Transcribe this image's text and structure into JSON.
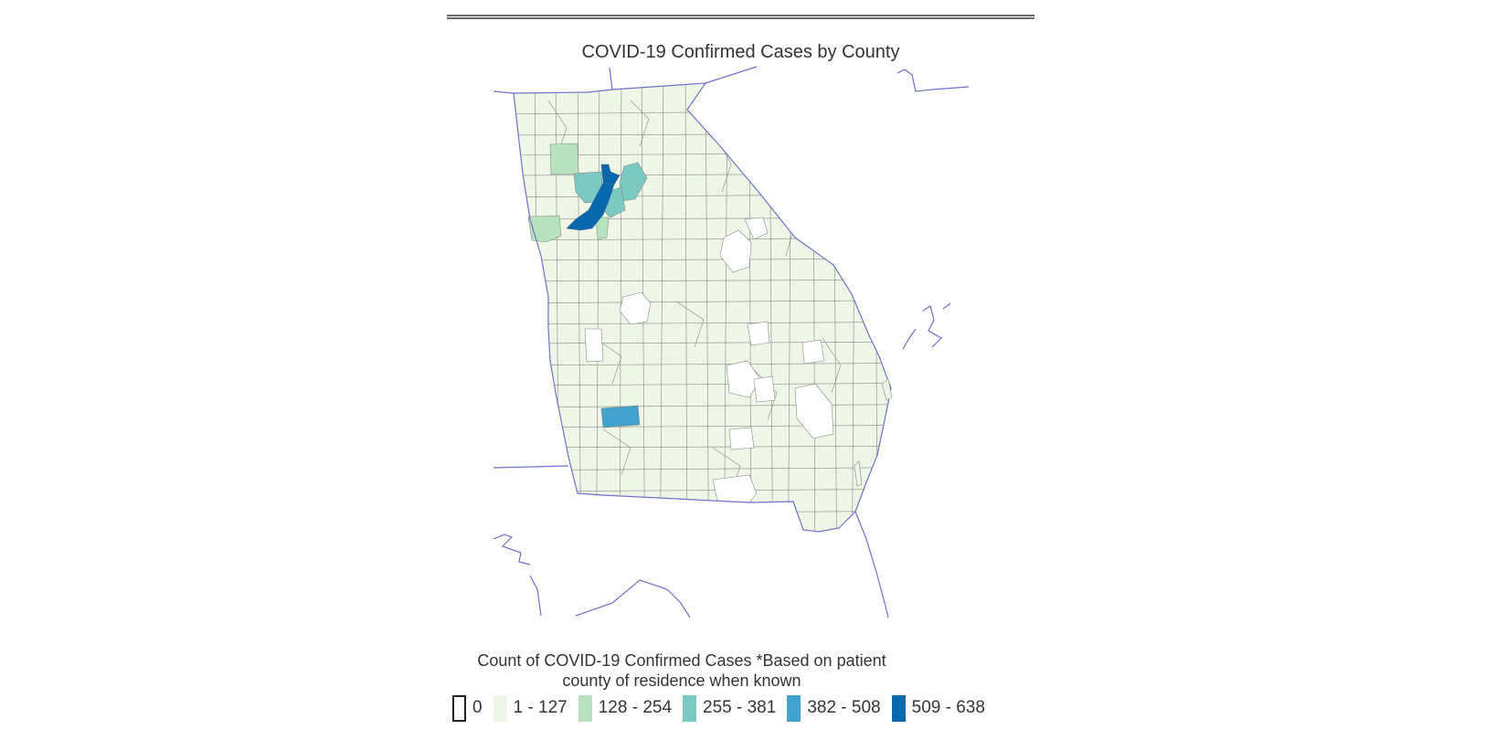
{
  "map": {
    "title": "COVID-19 Confirmed Cases by County",
    "region_shown": "Georgia",
    "colors": {
      "border": "#7070c8",
      "county_edge": "#8a8a8a",
      "no_data": "#ffffff",
      "background": "#ffffff"
    }
  },
  "legend": {
    "title_line1": "Count of COVID-19 Confirmed Cases *Based on patient",
    "title_line2": "county of residence when known",
    "items": [
      {
        "label": "0",
        "color": "#ffffff",
        "outlined": true
      },
      {
        "label": "1 - 127",
        "color": "#eef7e6",
        "outlined": false
      },
      {
        "label": "128 - 254",
        "color": "#b8e2bd",
        "outlined": false
      },
      {
        "label": "255 - 381",
        "color": "#7acac4",
        "outlined": false
      },
      {
        "label": "382 - 508",
        "color": "#43a2cb",
        "outlined": false
      },
      {
        "label": "509 - 638",
        "color": "#0868ac",
        "outlined": false
      }
    ]
  }
}
